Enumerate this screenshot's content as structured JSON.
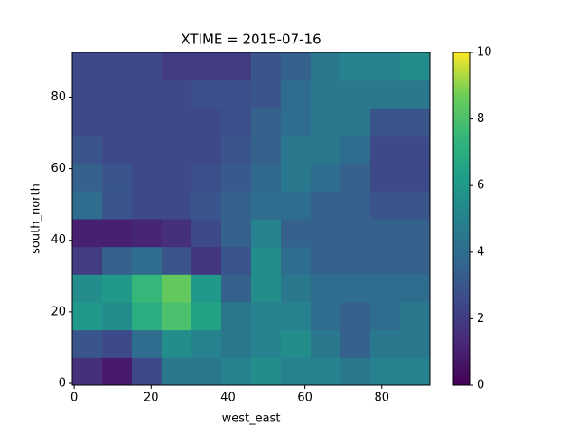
{
  "chart_data": {
    "type": "heatmap",
    "title": "XTIME = 2015-07-16",
    "x_label": "west_east",
    "y_label": "south_north",
    "xlim": [
      -0.5,
      92.5
    ],
    "ylim": [
      -0.5,
      92.5
    ],
    "xticks": [
      0,
      20,
      40,
      60,
      80
    ],
    "yticks": [
      0,
      20,
      40,
      60,
      80
    ],
    "xbins": [
      -0.5,
      7.25,
      15,
      22.75,
      30.5,
      38.25,
      46,
      53.75,
      61.5,
      69.25,
      77,
      84.75,
      92.5
    ],
    "ybins": [
      -0.5,
      7.25,
      15,
      22.75,
      30.5,
      38.25,
      46,
      53.75,
      61.5,
      69.25,
      77,
      84.75,
      92.5
    ],
    "z": [
      [
        1.5,
        0.8,
        2.5,
        4.5,
        4.5,
        5,
        5.5,
        5,
        5,
        4.5,
        5,
        5
      ],
      [
        3,
        2.5,
        4,
        5.5,
        5,
        4.5,
        5,
        5.5,
        4.5,
        3.5,
        4.5,
        4.5
      ],
      [
        6,
        5.5,
        7,
        8,
        6.5,
        4.5,
        5,
        5,
        4,
        3.5,
        4,
        4.5
      ],
      [
        5.5,
        6,
        7.5,
        8.5,
        6,
        3.5,
        5.5,
        4.5,
        4,
        4,
        4,
        4
      ],
      [
        2,
        3.5,
        4,
        3,
        1.8,
        3,
        5.5,
        4,
        3.5,
        3.5,
        3.5,
        3.5
      ],
      [
        1,
        1,
        1.2,
        1.5,
        2.5,
        3.5,
        5,
        3.5,
        3.5,
        3.5,
        3.5,
        3.5
      ],
      [
        4,
        3,
        2.5,
        2.5,
        3,
        3.5,
        4,
        4,
        3.5,
        3.5,
        3,
        3
      ],
      [
        3.5,
        3,
        2.5,
        2.5,
        2.8,
        3.2,
        3.8,
        4.5,
        4,
        3.5,
        2.5,
        2.5
      ],
      [
        3,
        2.5,
        2.5,
        2.5,
        2.5,
        3,
        3.5,
        4.5,
        4.5,
        4,
        2.5,
        2.5
      ],
      [
        2.5,
        2.5,
        2.5,
        2.5,
        2.5,
        2.8,
        3.5,
        4,
        4.5,
        4.5,
        3,
        3
      ],
      [
        2.5,
        2.5,
        2.5,
        2.5,
        2.8,
        2.8,
        3,
        4,
        4.5,
        4.5,
        4.5,
        4.5
      ],
      [
        2.5,
        2.5,
        2.5,
        2,
        2,
        2,
        3,
        3.5,
        4.5,
        5,
        5,
        5.5
      ]
    ],
    "colormap": "viridis",
    "clim": [
      0,
      10
    ],
    "cticks": [
      0,
      2,
      4,
      6,
      8,
      10
    ]
  }
}
